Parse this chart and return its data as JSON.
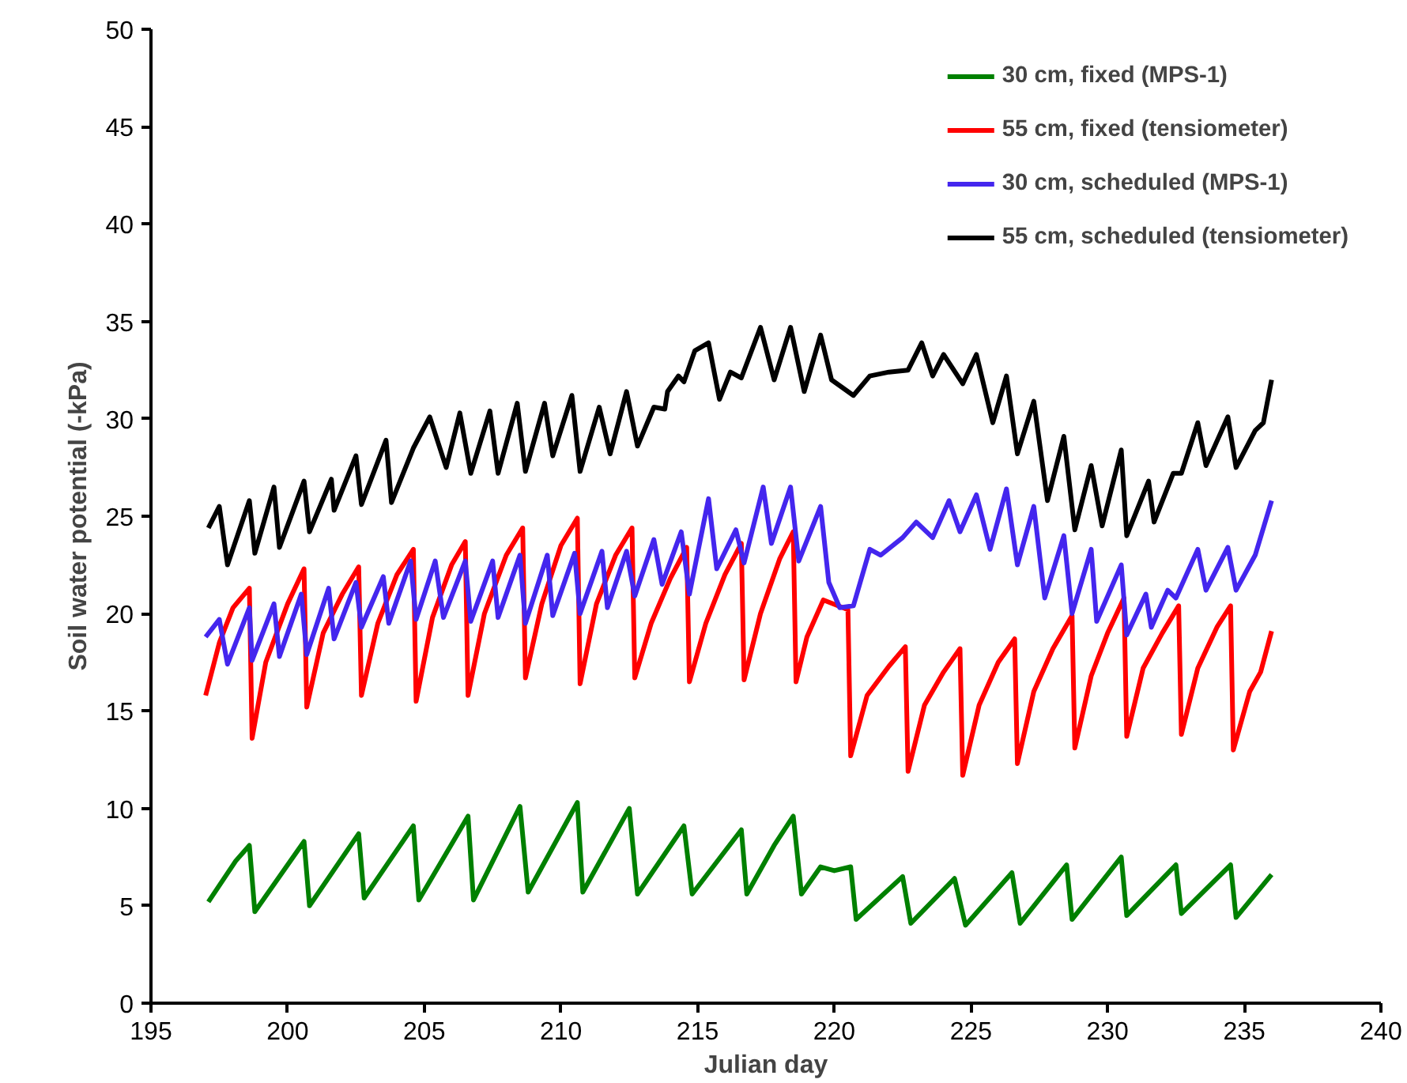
{
  "chart_data": {
    "type": "line",
    "xlabel": "Julian day",
    "ylabel": "Soil water potential (-kPa)",
    "xlim": [
      195,
      240
    ],
    "xticks": [
      195,
      200,
      205,
      210,
      215,
      220,
      225,
      230,
      235,
      240
    ],
    "ylim": [
      0,
      50
    ],
    "yticks": [
      0,
      5,
      10,
      15,
      20,
      25,
      30,
      35,
      40,
      45,
      50
    ],
    "grid": false,
    "legend": "top right",
    "series": [
      {
        "name": "30 cm, fixed (MPS-1)",
        "color": "#008000",
        "x": [
          197.1,
          198.1,
          198.6,
          198.8,
          200.6,
          200.8,
          202.6,
          202.8,
          204.6,
          204.8,
          206.6,
          206.8,
          208.5,
          208.8,
          210.6,
          210.8,
          212.5,
          212.8,
          214.5,
          214.8,
          216.6,
          216.8,
          217.8,
          218.5,
          218.8,
          219.5,
          220.0,
          220.6,
          220.8,
          222.5,
          222.8,
          224.4,
          224.8,
          226.5,
          226.8,
          228.5,
          228.7,
          230.5,
          230.7,
          232.5,
          232.7,
          234.5,
          234.7,
          236.0
        ],
        "values": [
          5.2,
          7.3,
          8.1,
          4.7,
          8.3,
          5.0,
          8.7,
          5.4,
          9.1,
          5.3,
          9.6,
          5.3,
          10.1,
          5.7,
          10.3,
          5.7,
          10.0,
          5.6,
          9.1,
          5.6,
          8.9,
          5.6,
          8.1,
          9.6,
          5.6,
          7.0,
          6.8,
          7.0,
          4.3,
          6.5,
          4.1,
          6.4,
          4.0,
          6.7,
          4.1,
          7.1,
          4.3,
          7.5,
          4.5,
          7.1,
          4.6,
          7.1,
          4.4,
          6.6
        ]
      },
      {
        "name": "55 cm, fixed (tensiometer)",
        "color": "#ff0000",
        "x": [
          197.0,
          197.5,
          198.0,
          198.6,
          198.7,
          199.2,
          200.0,
          200.6,
          200.7,
          201.3,
          202.0,
          202.6,
          202.7,
          203.3,
          204.0,
          204.6,
          204.7,
          205.3,
          206.0,
          206.5,
          206.6,
          207.2,
          208.0,
          208.6,
          208.7,
          209.3,
          210.0,
          210.6,
          210.7,
          211.3,
          212.0,
          212.6,
          212.7,
          213.3,
          214.0,
          214.6,
          214.7,
          215.3,
          216.0,
          216.6,
          216.7,
          217.3,
          218.0,
          218.5,
          218.6,
          219.0,
          219.6,
          220.5,
          220.6,
          221.2,
          222.0,
          222.6,
          222.7,
          223.3,
          224.0,
          224.6,
          224.7,
          225.3,
          226.0,
          226.6,
          226.7,
          227.3,
          228.0,
          228.7,
          228.8,
          229.4,
          230.0,
          230.6,
          230.7,
          231.3,
          232.0,
          232.6,
          232.7,
          233.3,
          234.0,
          234.5,
          234.6,
          235.2,
          235.6,
          236.0
        ],
        "values": [
          15.8,
          18.5,
          20.3,
          21.3,
          13.6,
          17.5,
          20.5,
          22.3,
          15.2,
          19.0,
          21.0,
          22.4,
          15.8,
          19.5,
          22.0,
          23.3,
          15.5,
          19.8,
          22.5,
          23.7,
          15.8,
          20.0,
          23.0,
          24.4,
          16.7,
          20.5,
          23.5,
          24.9,
          16.4,
          20.5,
          23.0,
          24.4,
          16.7,
          19.5,
          21.8,
          23.4,
          16.5,
          19.5,
          22.0,
          23.6,
          16.6,
          20.0,
          22.8,
          24.2,
          16.5,
          18.8,
          20.7,
          20.2,
          12.7,
          15.8,
          17.3,
          18.3,
          11.9,
          15.3,
          17.0,
          18.2,
          11.7,
          15.3,
          17.5,
          18.7,
          12.3,
          16.0,
          18.2,
          19.9,
          13.1,
          16.8,
          19.0,
          20.8,
          13.7,
          17.2,
          19.0,
          20.4,
          13.8,
          17.2,
          19.3,
          20.4,
          13.0,
          16.0,
          17.0,
          19.1
        ]
      },
      {
        "name": "30 cm, scheduled (MPS-1)",
        "color": "#4426ee",
        "x": [
          197.0,
          197.5,
          197.8,
          198.6,
          198.7,
          199.5,
          199.7,
          200.5,
          200.7,
          201.5,
          201.7,
          202.5,
          202.7,
          203.5,
          203.7,
          204.5,
          204.7,
          205.4,
          205.7,
          206.5,
          206.7,
          207.5,
          207.7,
          208.5,
          208.7,
          209.5,
          209.7,
          210.5,
          210.7,
          211.5,
          211.7,
          212.4,
          212.7,
          213.4,
          213.7,
          214.4,
          214.7,
          215.4,
          215.7,
          216.4,
          216.7,
          217.4,
          217.7,
          218.4,
          218.7,
          219.5,
          219.8,
          220.2,
          220.7,
          221.3,
          221.7,
          222.5,
          223.0,
          223.6,
          224.2,
          224.6,
          225.2,
          225.7,
          226.3,
          226.7,
          227.3,
          227.7,
          228.4,
          228.7,
          229.4,
          229.6,
          230.5,
          230.7,
          231.4,
          231.6,
          232.2,
          232.5,
          233.3,
          233.6,
          234.4,
          234.7,
          235.4,
          236.0
        ],
        "values": [
          18.8,
          19.7,
          17.4,
          20.3,
          17.6,
          20.5,
          17.8,
          21.0,
          17.9,
          21.3,
          18.7,
          21.6,
          19.3,
          21.9,
          19.5,
          22.7,
          19.7,
          22.7,
          19.8,
          22.7,
          19.6,
          22.7,
          19.8,
          23.0,
          19.5,
          23.0,
          19.9,
          23.1,
          20.0,
          23.2,
          20.3,
          23.2,
          20.9,
          23.8,
          21.5,
          24.2,
          21.0,
          25.9,
          22.3,
          24.3,
          22.6,
          26.5,
          23.6,
          26.5,
          22.7,
          25.5,
          21.6,
          20.3,
          20.4,
          23.3,
          23.0,
          23.9,
          24.7,
          23.9,
          25.8,
          24.2,
          26.1,
          23.3,
          26.4,
          22.5,
          25.5,
          20.8,
          24.0,
          20.0,
          23.3,
          19.6,
          22.5,
          18.9,
          21.0,
          19.3,
          21.2,
          20.8,
          23.3,
          21.2,
          23.4,
          21.2,
          23.0,
          25.8
        ]
      },
      {
        "name": "55 cm, scheduled (tensiometer)",
        "color": "#000000",
        "x": [
          197.1,
          197.5,
          197.8,
          198.6,
          198.8,
          199.5,
          199.7,
          200.6,
          200.8,
          201.6,
          201.7,
          202.5,
          202.7,
          203.6,
          203.8,
          204.6,
          205.2,
          205.8,
          206.3,
          206.7,
          207.4,
          207.7,
          208.4,
          208.7,
          209.4,
          209.7,
          210.4,
          210.7,
          211.4,
          211.8,
          212.4,
          212.8,
          213.4,
          213.8,
          213.9,
          214.3,
          214.5,
          214.9,
          215.4,
          215.8,
          216.2,
          216.6,
          217.3,
          217.8,
          218.4,
          218.9,
          219.5,
          219.9,
          220.7,
          221.3,
          222.0,
          222.7,
          223.2,
          223.6,
          224.0,
          224.7,
          225.2,
          225.8,
          226.3,
          226.7,
          227.3,
          227.8,
          228.4,
          228.8,
          229.4,
          229.8,
          230.5,
          230.7,
          231.5,
          231.7,
          232.4,
          232.7,
          233.3,
          233.6,
          234.4,
          234.7,
          235.4,
          235.7,
          236.0
        ],
        "values": [
          24.4,
          25.5,
          22.5,
          25.8,
          23.1,
          26.5,
          23.4,
          26.8,
          24.2,
          26.9,
          25.3,
          28.1,
          25.6,
          28.9,
          25.7,
          28.5,
          30.1,
          27.5,
          30.3,
          27.2,
          30.4,
          27.2,
          30.8,
          27.3,
          30.8,
          28.1,
          31.2,
          27.3,
          30.6,
          28.2,
          31.4,
          28.6,
          30.6,
          30.5,
          31.4,
          32.2,
          31.9,
          33.5,
          33.9,
          31.0,
          32.4,
          32.1,
          34.7,
          32.0,
          34.7,
          31.4,
          34.3,
          32.0,
          31.2,
          32.2,
          32.4,
          32.5,
          33.9,
          32.2,
          33.3,
          31.8,
          33.3,
          29.8,
          32.2,
          28.2,
          30.9,
          25.8,
          29.1,
          24.3,
          27.6,
          24.5,
          28.4,
          24.0,
          26.8,
          24.7,
          27.2,
          27.2,
          29.8,
          27.6,
          30.1,
          27.5,
          29.4,
          29.8,
          32.0
        ]
      }
    ]
  }
}
